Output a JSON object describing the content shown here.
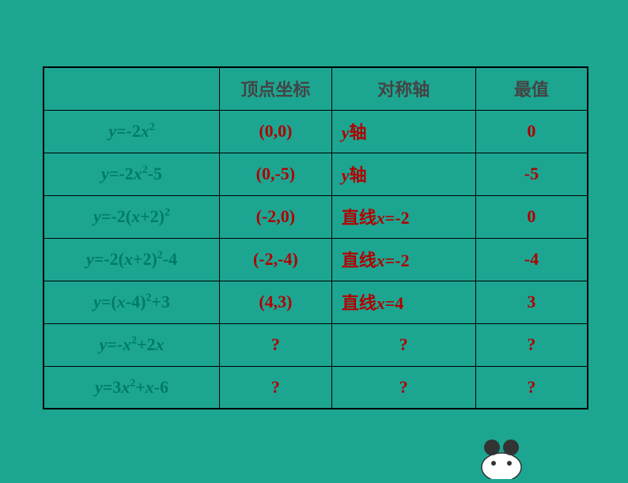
{
  "background_color": "#1ca692",
  "table": {
    "border_color": "#000000",
    "headers": {
      "formula": "",
      "vertex": "顶点坐标",
      "axis": "对称轴",
      "extreme": "最值"
    },
    "header_color": "#444444",
    "formula_color": "#007a66",
    "data_color": "#b00000",
    "rows": [
      {
        "formula_html": "<span class='var'>y</span><span class='num'>=-2</span><span class='var'>x</span><sup>2</sup>",
        "vertex": "(0,0)",
        "axis_html": "<span class='var'>y</span><span class='cn'>轴</span>",
        "extreme": "0"
      },
      {
        "formula_html": "<span class='var'>y</span><span class='num'>=-2</span><span class='var'>x</span><sup>2</sup><span class='num'>-5</span>",
        "vertex": "(0,-5)",
        "axis_html": "<span class='var'>y</span><span class='cn'>轴</span>",
        "extreme": "-5"
      },
      {
        "formula_html": "<span class='var'>y</span><span class='num'>=-2(</span><span class='var'>x</span><span class='num'>+2)</span><sup>2</sup>",
        "vertex": "(-2,0)",
        "axis_html": "<span class='cn'>直线</span><span class='var'>x</span><span class='num'>=-2</span>",
        "extreme": "0"
      },
      {
        "formula_html": "<span class='var'>y</span><span class='num'>=-2(</span><span class='var'>x</span><span class='num'>+2)</span><sup>2</sup><span class='num'>-4</span>",
        "vertex": "(-2,-4)",
        "axis_html": "<span class='cn'>直线</span><span class='var'>x</span><span class='num'>=-2</span>",
        "extreme": "-4"
      },
      {
        "formula_html": "<span class='var'>y</span><span class='num'>=(</span><span class='var'>x</span><span class='num'>-4)</span><sup>2</sup><span class='num'>+3</span>",
        "vertex": "(4,3)",
        "axis_html": "<span class='cn'>直线</span><span class='var'>x</span><span class='num'>=4</span>",
        "extreme": "3"
      },
      {
        "formula_html": "<span class='var'>y</span><span class='num'>=-</span><span class='var'>x</span><sup>2</sup><span class='num'>+2</span><span class='var'>x</span>",
        "vertex": "?",
        "axis_html": "?",
        "extreme": "?"
      },
      {
        "formula_html": "<span class='var'>y</span><span class='num'>=3</span><span class='var'>x</span><sup>2</sup><span class='num'>+</span><span class='var'>x</span><span class='num'>-6</span>",
        "vertex": "?",
        "axis_html": "?",
        "extreme": "?"
      }
    ]
  }
}
